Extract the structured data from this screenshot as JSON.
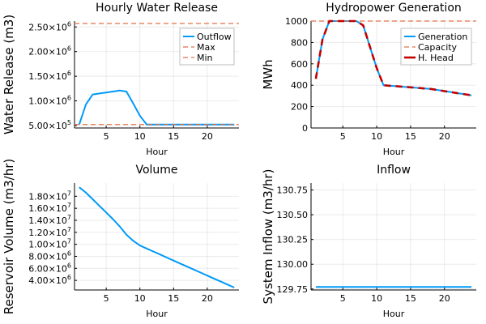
{
  "chart_data": [
    {
      "type": "line",
      "title": "Hourly Water Release",
      "xlabel": "Hour",
      "ylabel": "Water Release (m3)",
      "xlim": [
        0.3,
        24.7
      ],
      "ylim": [
        450000,
        2620000
      ],
      "xticks": [
        5,
        10,
        15,
        20
      ],
      "xtick_labels": [
        "5",
        "10",
        "15",
        "20"
      ],
      "yticks": [
        500000,
        1000000,
        1500000,
        2000000,
        2500000
      ],
      "ytick_labels": [
        {
          "base": "5.00×10",
          "exp": "5"
        },
        {
          "base": "1.00×10",
          "exp": "6"
        },
        {
          "base": "1.50×10",
          "exp": "6"
        },
        {
          "base": "2.00×10",
          "exp": "6"
        },
        {
          "base": "2.50×10",
          "exp": "6"
        }
      ],
      "series": [
        {
          "name": "Outflow",
          "color": "#009af9",
          "style": "solid",
          "x": [
            1,
            2,
            3,
            4,
            5,
            6,
            7,
            8,
            9,
            10,
            11,
            12,
            13,
            14,
            15,
            16,
            17,
            18,
            19,
            20,
            21,
            22,
            23,
            24
          ],
          "y": [
            520000,
            930000,
            1130000,
            1150000,
            1170000,
            1190000,
            1210000,
            1190000,
            950000,
            700000,
            520000,
            520000,
            520000,
            520000,
            520000,
            520000,
            520000,
            520000,
            520000,
            520000,
            520000,
            520000,
            520000,
            520000
          ]
        },
        {
          "name": "Max",
          "color": "#e26f46",
          "style": "dashed",
          "x": [
            0.3,
            24.7
          ],
          "y": [
            2570000,
            2570000
          ]
        },
        {
          "name": "Min",
          "color": "#e26f46",
          "style": "dashed",
          "x": [
            0.3,
            24.7
          ],
          "y": [
            520000,
            520000
          ]
        }
      ],
      "legend": "top-right"
    },
    {
      "type": "line",
      "title": "Hydropower Generation",
      "xlabel": "Hour",
      "ylabel": "MWh",
      "xlim": [
        0.3,
        24.7
      ],
      "ylim": [
        0,
        1000
      ],
      "xticks": [
        5,
        10,
        15,
        20
      ],
      "xtick_labels": [
        "5",
        "10",
        "15",
        "20"
      ],
      "yticks": [
        0,
        200,
        400,
        600,
        800,
        1000
      ],
      "ytick_labels": [
        "0",
        "200",
        "400",
        "600",
        "800",
        "1000"
      ],
      "series": [
        {
          "name": "Generation",
          "color": "#009af9",
          "style": "solid",
          "x": [
            1,
            2,
            3,
            4,
            5,
            6,
            7,
            8,
            9,
            10,
            11,
            12,
            13,
            14,
            15,
            16,
            17,
            18,
            19,
            20,
            21,
            22,
            23,
            24
          ],
          "y": [
            460,
            830,
            1000,
            1000,
            1000,
            1000,
            1000,
            960,
            760,
            560,
            400,
            395,
            390,
            385,
            380,
            375,
            370,
            365,
            355,
            345,
            335,
            325,
            315,
            305
          ]
        },
        {
          "name": "Capacity",
          "color": "#e26f46",
          "style": "dashed",
          "x": [
            0.3,
            24.7
          ],
          "y": [
            1000,
            1000
          ]
        },
        {
          "name": "H. Head",
          "color": "#c00000",
          "style": "dashed-thick",
          "x": [
            1,
            2,
            3,
            4,
            5,
            6,
            7,
            8,
            9,
            10,
            11,
            12,
            13,
            14,
            15,
            16,
            17,
            18,
            19,
            20,
            21,
            22,
            23,
            24
          ],
          "y": [
            460,
            830,
            1000,
            1000,
            1000,
            1000,
            1000,
            960,
            760,
            560,
            400,
            395,
            390,
            385,
            380,
            375,
            370,
            365,
            355,
            345,
            335,
            325,
            315,
            305
          ]
        }
      ],
      "legend": "top-right"
    },
    {
      "type": "line",
      "title": "Volume",
      "xlabel": "Hour",
      "ylabel": "Reservoir Volume (m3/hr)",
      "xlim": [
        0.3,
        24.7
      ],
      "ylim": [
        2400000,
        20200000
      ],
      "xticks": [
        5,
        10,
        15,
        20
      ],
      "xtick_labels": [
        "5",
        "10",
        "15",
        "20"
      ],
      "yticks": [
        4000000,
        6000000,
        8000000,
        10000000,
        12000000,
        14000000,
        16000000,
        18000000
      ],
      "ytick_labels": [
        {
          "base": "4.00×10",
          "exp": "6"
        },
        {
          "base": "6.00×10",
          "exp": "6"
        },
        {
          "base": "8.00×10",
          "exp": "6"
        },
        {
          "base": "1.00×10",
          "exp": "7"
        },
        {
          "base": "1.20×10",
          "exp": "7"
        },
        {
          "base": "1.40×10",
          "exp": "7"
        },
        {
          "base": "1.60×10",
          "exp": "7"
        },
        {
          "base": "1.80×10",
          "exp": "7"
        }
      ],
      "series": [
        {
          "name": "Volume",
          "color": "#009af9",
          "style": "solid",
          "x": [
            1,
            2,
            3,
            4,
            5,
            6,
            7,
            8,
            9,
            10,
            11,
            12,
            13,
            14,
            15,
            16,
            17,
            18,
            19,
            20,
            21,
            22,
            23,
            24
          ],
          "y": [
            19500000,
            18600000,
            17500000,
            16400000,
            15300000,
            14200000,
            13000000,
            11600000,
            10600000,
            9800000,
            9300000,
            8800000,
            8300000,
            7800000,
            7300000,
            6800000,
            6300000,
            5800000,
            5300000,
            4800000,
            4300000,
            3800000,
            3300000,
            2800000
          ]
        }
      ],
      "legend": "none"
    },
    {
      "type": "line",
      "title": "Inflow",
      "xlabel": "Hour",
      "ylabel": "System Inflow (m3/hr)",
      "xlim": [
        0.3,
        24.7
      ],
      "ylim": [
        129.74,
        130.82
      ],
      "xticks": [
        5,
        10,
        15,
        20
      ],
      "xtick_labels": [
        "5",
        "10",
        "15",
        "20"
      ],
      "yticks": [
        129.75,
        130.0,
        130.25,
        130.5,
        130.75
      ],
      "ytick_labels": [
        "129.75",
        "130.00",
        "130.25",
        "130.50",
        "130.75"
      ],
      "series": [
        {
          "name": "Inflow",
          "color": "#009af9",
          "style": "solid",
          "x": [
            1,
            2,
            3,
            4,
            5,
            6,
            7,
            8,
            9,
            10,
            11,
            12,
            13,
            14,
            15,
            16,
            17,
            18,
            19,
            20,
            21,
            22,
            23,
            24
          ],
          "y": [
            129.77,
            129.77,
            129.77,
            129.77,
            129.77,
            129.77,
            129.77,
            129.77,
            129.77,
            129.77,
            129.77,
            129.77,
            129.77,
            129.77,
            129.77,
            129.77,
            129.77,
            129.77,
            129.77,
            129.77,
            129.77,
            129.77,
            129.77,
            129.77
          ]
        }
      ],
      "legend": "none"
    }
  ]
}
